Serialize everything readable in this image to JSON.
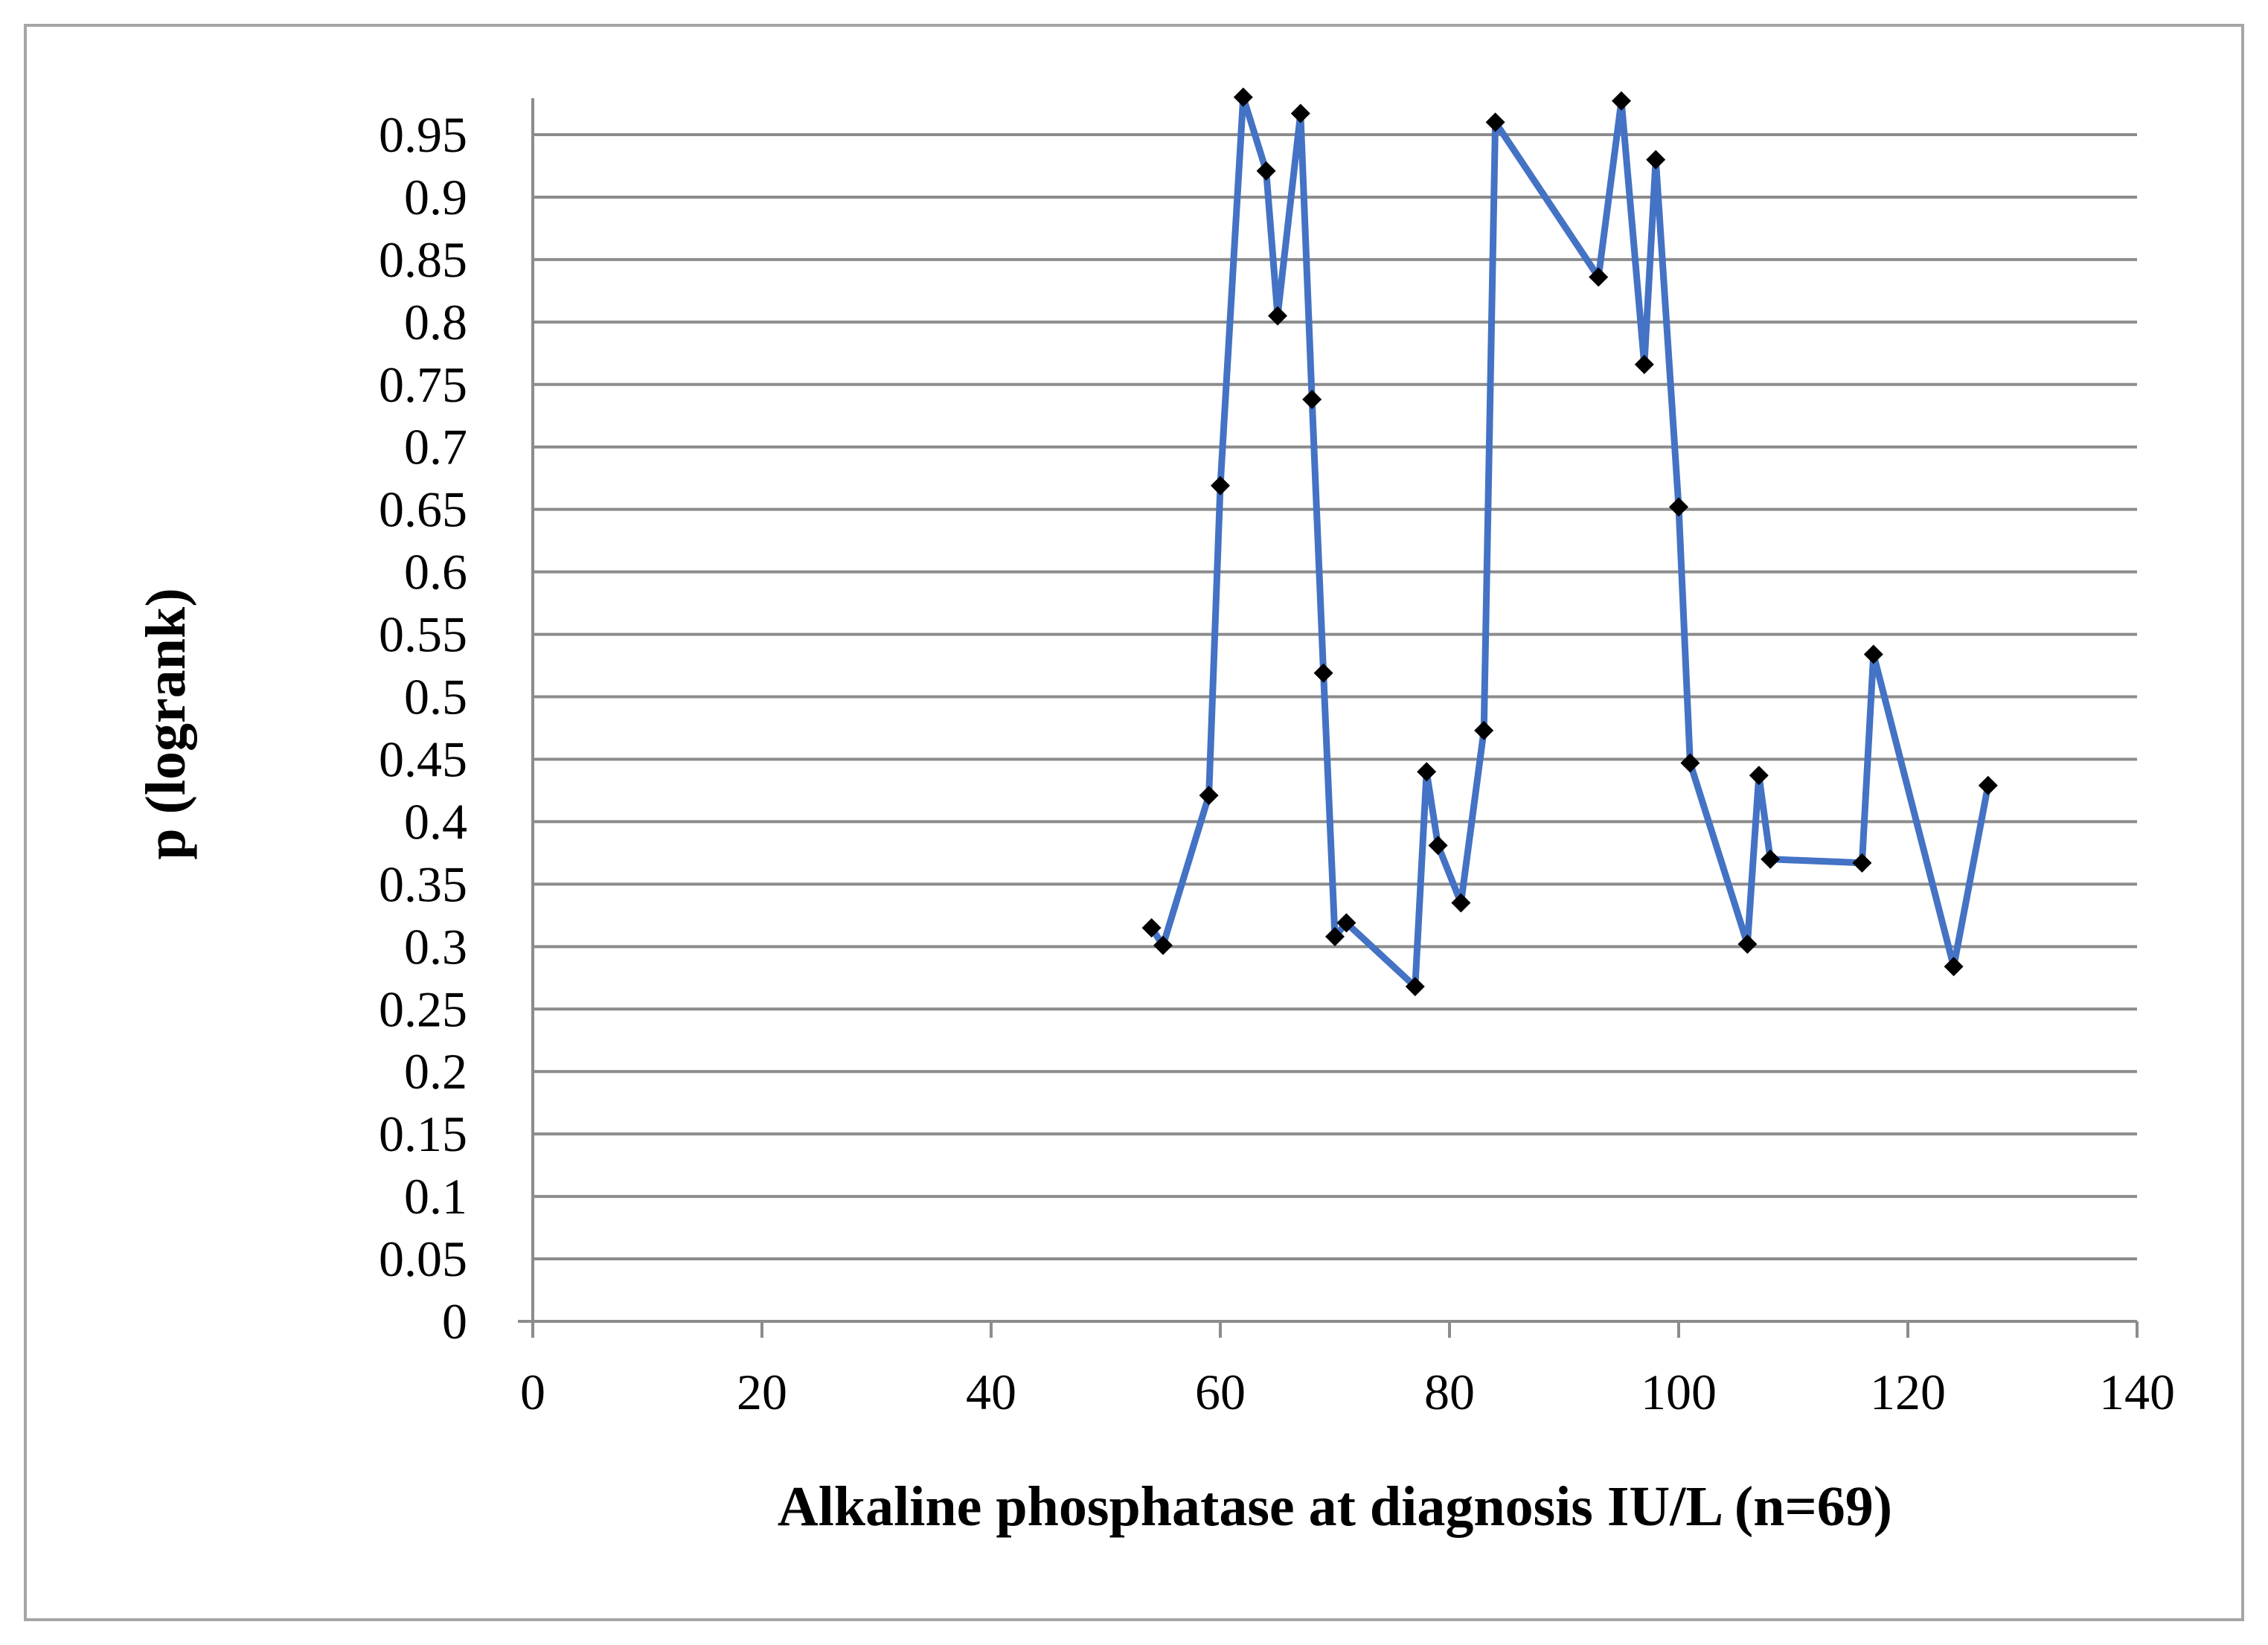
{
  "chart_data": {
    "type": "line",
    "title": "",
    "xlabel": "Alkaline phosphatase at diagnosis IU/L (n=69)",
    "ylabel": "p (logrank)",
    "xlim": [
      0,
      140
    ],
    "ylim": [
      0,
      0.95
    ],
    "x_ticks": [
      "0",
      "20",
      "40",
      "60",
      "80",
      "100",
      "120",
      "140"
    ],
    "y_ticks": [
      "0",
      "0.05",
      "0.1",
      "0.15",
      "0.2",
      "0.25",
      "0.3",
      "0.35",
      "0.4",
      "0.45",
      "0.5",
      "0.55",
      "0.6",
      "0.65",
      "0.7",
      "0.75",
      "0.8",
      "0.85",
      "0.9",
      "0.95"
    ],
    "grid": true,
    "legend": "none",
    "series": [
      {
        "color": "#4472c4",
        "marker": "diamond",
        "marker_color": "#000000",
        "points": [
          {
            "x": 54,
            "y": 0.315
          },
          {
            "x": 55,
            "y": 0.301
          },
          {
            "x": 59,
            "y": 0.421
          },
          {
            "x": 60,
            "y": 0.669
          },
          {
            "x": 62,
            "y": 0.98
          },
          {
            "x": 64,
            "y": 0.921
          },
          {
            "x": 65,
            "y": 0.805
          },
          {
            "x": 67,
            "y": 0.967
          },
          {
            "x": 68,
            "y": 0.738
          },
          {
            "x": 69,
            "y": 0.519
          },
          {
            "x": 70,
            "y": 0.308
          },
          {
            "x": 71,
            "y": 0.319
          },
          {
            "x": 77,
            "y": 0.268
          },
          {
            "x": 78,
            "y": 0.44
          },
          {
            "x": 79,
            "y": 0.381
          },
          {
            "x": 81,
            "y": 0.335
          },
          {
            "x": 83,
            "y": 0.473
          },
          {
            "x": 84,
            "y": 0.96
          },
          {
            "x": 93,
            "y": 0.836
          },
          {
            "x": 95,
            "y": 0.977
          },
          {
            "x": 97,
            "y": 0.766
          },
          {
            "x": 98,
            "y": 0.93
          },
          {
            "x": 100,
            "y": 0.652
          },
          {
            "x": 101,
            "y": 0.447
          },
          {
            "x": 106,
            "y": 0.302
          },
          {
            "x": 107,
            "y": 0.437
          },
          {
            "x": 108,
            "y": 0.37
          },
          {
            "x": 116,
            "y": 0.367
          },
          {
            "x": 117,
            "y": 0.534
          },
          {
            "x": 124,
            "y": 0.284
          },
          {
            "x": 127,
            "y": 0.429
          }
        ]
      }
    ]
  }
}
